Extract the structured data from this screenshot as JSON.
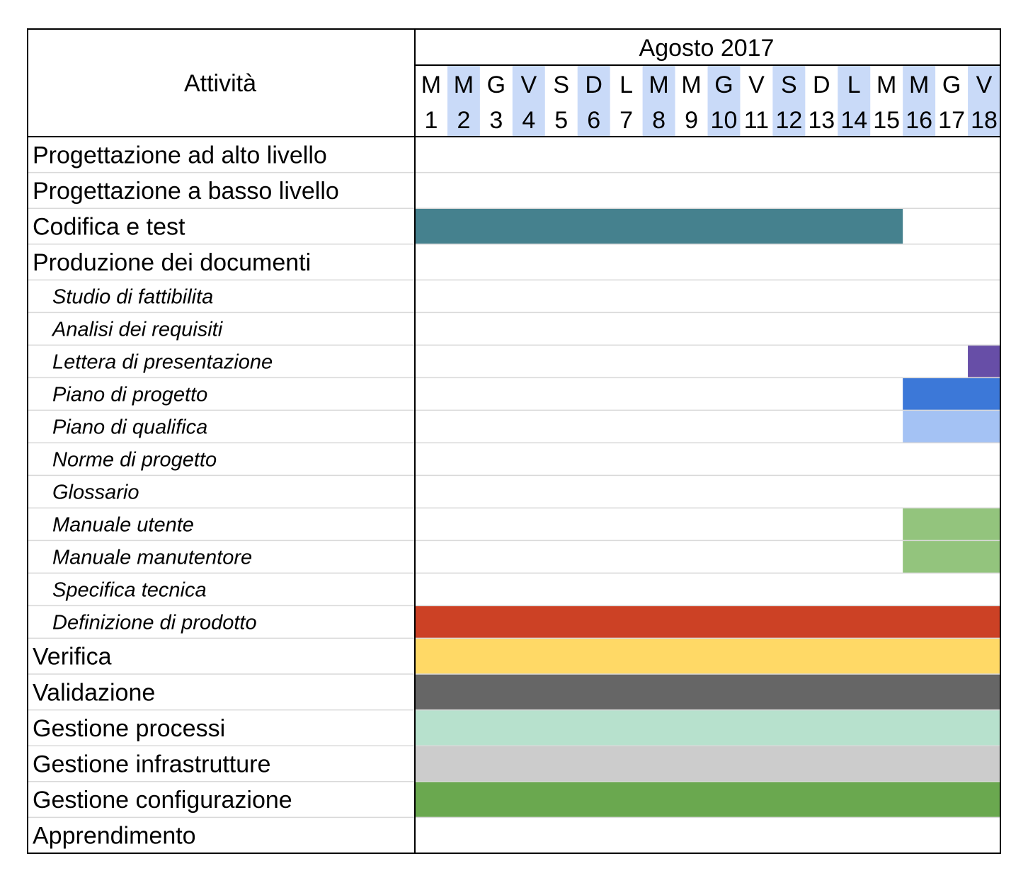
{
  "chart_data": {
    "type": "gantt",
    "header": {
      "activity_label": "Attività",
      "month_label": "Agosto 2017"
    },
    "days": [
      {
        "letter": "M",
        "num": "1",
        "shaded": false
      },
      {
        "letter": "M",
        "num": "2",
        "shaded": true
      },
      {
        "letter": "G",
        "num": "3",
        "shaded": false
      },
      {
        "letter": "V",
        "num": "4",
        "shaded": true
      },
      {
        "letter": "S",
        "num": "5",
        "shaded": false
      },
      {
        "letter": "D",
        "num": "6",
        "shaded": true
      },
      {
        "letter": "L",
        "num": "7",
        "shaded": false
      },
      {
        "letter": "M",
        "num": "8",
        "shaded": true
      },
      {
        "letter": "M",
        "num": "9",
        "shaded": false
      },
      {
        "letter": "G",
        "num": "10",
        "shaded": true
      },
      {
        "letter": "V",
        "num": "11",
        "shaded": false
      },
      {
        "letter": "S",
        "num": "12",
        "shaded": true
      },
      {
        "letter": "D",
        "num": "13",
        "shaded": false
      },
      {
        "letter": "L",
        "num": "14",
        "shaded": true
      },
      {
        "letter": "M",
        "num": "15",
        "shaded": false
      },
      {
        "letter": "M",
        "num": "16",
        "shaded": true
      },
      {
        "letter": "G",
        "num": "17",
        "shaded": false
      },
      {
        "letter": "V",
        "num": "18",
        "shaded": true
      }
    ],
    "tasks": [
      {
        "name": "Progettazione ad alto livello",
        "sub": false,
        "start": null,
        "end": null,
        "color": null
      },
      {
        "name": "Progettazione a basso livello",
        "sub": false,
        "start": null,
        "end": null,
        "color": null
      },
      {
        "name": "Codifica e test",
        "sub": false,
        "start": 1,
        "end": 15,
        "color": "#45818e"
      },
      {
        "name": "Produzione dei documenti",
        "sub": false,
        "start": null,
        "end": null,
        "color": null
      },
      {
        "name": "Studio di fattibilita",
        "sub": true,
        "start": null,
        "end": null,
        "color": null
      },
      {
        "name": "Analisi dei requisiti",
        "sub": true,
        "start": null,
        "end": null,
        "color": null
      },
      {
        "name": "Lettera di presentazione",
        "sub": true,
        "start": 18,
        "end": 18,
        "color": "#674ea7"
      },
      {
        "name": "Piano di progetto",
        "sub": true,
        "start": 16,
        "end": 18,
        "color": "#3c78d8"
      },
      {
        "name": "Piano di qualifica",
        "sub": true,
        "start": 16,
        "end": 18,
        "color": "#a4c2f4"
      },
      {
        "name": "Norme di progetto",
        "sub": true,
        "start": null,
        "end": null,
        "color": null
      },
      {
        "name": "Glossario",
        "sub": true,
        "start": null,
        "end": null,
        "color": null
      },
      {
        "name": "Manuale utente",
        "sub": true,
        "start": 16,
        "end": 18,
        "color": "#93c47d"
      },
      {
        "name": "Manuale manutentore",
        "sub": true,
        "start": 16,
        "end": 18,
        "color": "#93c47d"
      },
      {
        "name": "Specifica tecnica",
        "sub": true,
        "start": null,
        "end": null,
        "color": null
      },
      {
        "name": "Definizione di prodotto",
        "sub": true,
        "start": 1,
        "end": 18,
        "color": "#cc4125"
      },
      {
        "name": "Verifica",
        "sub": false,
        "start": 1,
        "end": 18,
        "color": "#ffd966"
      },
      {
        "name": "Validazione",
        "sub": false,
        "start": 1,
        "end": 18,
        "color": "#666666"
      },
      {
        "name": "Gestione processi",
        "sub": false,
        "start": 1,
        "end": 18,
        "color": "#b7e1cd"
      },
      {
        "name": "Gestione infrastrutture",
        "sub": false,
        "start": 1,
        "end": 18,
        "color": "#cccccc"
      },
      {
        "name": "Gestione configurazione",
        "sub": false,
        "start": 1,
        "end": 18,
        "color": "#6aa84f"
      },
      {
        "name": "Apprendimento",
        "sub": false,
        "start": null,
        "end": null,
        "color": null
      }
    ],
    "colors": {
      "day_shade": "#c9daf8",
      "border": "#000000",
      "grid": "#d9d9d9"
    }
  }
}
